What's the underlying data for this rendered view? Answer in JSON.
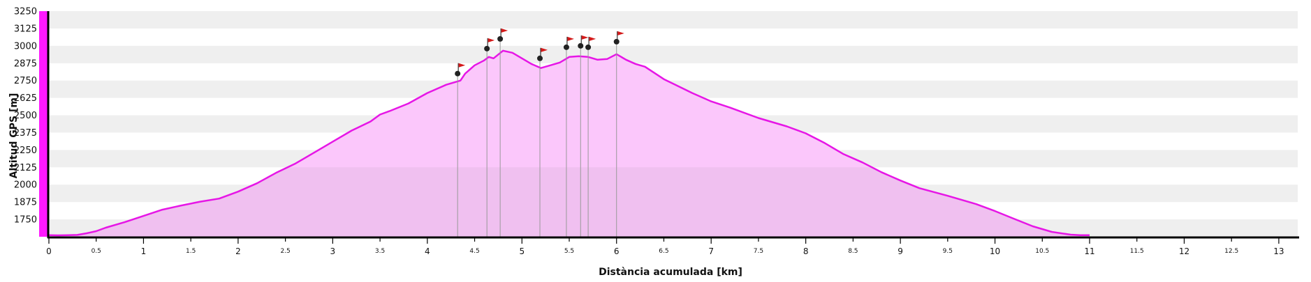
{
  "chart_data": {
    "type": "area",
    "xlabel": "Distància acumulada [km]",
    "ylabel": "Altitud GPS [m]",
    "xlim": [
      0,
      13.2
    ],
    "ylim": [
      1625,
      3250
    ],
    "x_ticks": [
      0,
      0.5,
      1,
      1.5,
      2,
      2.5,
      3,
      3.5,
      4,
      4.5,
      5,
      5.5,
      6,
      6.5,
      7,
      7.5,
      8,
      8.5,
      9,
      9.5,
      10,
      10.5,
      11,
      11.5,
      12,
      12.5,
      13
    ],
    "x_tick_labels": [
      "0",
      "0.5",
      "1",
      "1.5",
      "2",
      "2.5",
      "3",
      "3.5",
      "4",
      "4.5",
      "5",
      "5.5",
      "6",
      "6.5",
      "7",
      "7.5",
      "8",
      "8.5",
      "9",
      "9.5",
      "10",
      "10.5",
      "11",
      "11.5",
      "12",
      "12.5",
      "13"
    ],
    "y_ticks": [
      1750,
      1875,
      2000,
      2125,
      2250,
      2375,
      2500,
      2625,
      2750,
      2875,
      3000,
      3125,
      3250
    ],
    "y_tick_labels": [
      "1750",
      "1875",
      "2000",
      "2125",
      "2250",
      "2375",
      "2500",
      "2625",
      "2750",
      "2875",
      "3000",
      "3125",
      "3250"
    ],
    "grid": "alternating horizontal bands",
    "series": [
      {
        "x": [
          0,
          0.1,
          0.2,
          0.3,
          0.4,
          0.5,
          0.6,
          0.8,
          1.0,
          1.2,
          1.4,
          1.6,
          1.8,
          2.0,
          2.2,
          2.4,
          2.6,
          2.8,
          3.0,
          3.2,
          3.4,
          3.5,
          3.6,
          3.8,
          4.0,
          4.2,
          4.3,
          4.35,
          4.4,
          4.5,
          4.6,
          4.65,
          4.7,
          4.8,
          4.9,
          5.0,
          5.1,
          5.2,
          5.3,
          5.4,
          5.5,
          5.6,
          5.7,
          5.8,
          5.9,
          6.0,
          6.1,
          6.2,
          6.3,
          6.5,
          6.8,
          7.0,
          7.2,
          7.5,
          7.8,
          8.0,
          8.2,
          8.4,
          8.6,
          8.8,
          9.0,
          9.2,
          9.5,
          9.8,
          10.0,
          10.2,
          10.4,
          10.6,
          10.8,
          10.9,
          11.0
        ],
        "y": [
          1636,
          1635,
          1636,
          1638,
          1650,
          1665,
          1690,
          1730,
          1775,
          1820,
          1850,
          1878,
          1900,
          1950,
          2010,
          2085,
          2150,
          2230,
          2310,
          2390,
          2455,
          2505,
          2530,
          2585,
          2660,
          2720,
          2740,
          2750,
          2800,
          2860,
          2895,
          2920,
          2910,
          2965,
          2950,
          2910,
          2870,
          2840,
          2860,
          2880,
          2920,
          2925,
          2920,
          2900,
          2905,
          2940,
          2900,
          2870,
          2850,
          2760,
          2660,
          2600,
          2555,
          2480,
          2420,
          2370,
          2300,
          2220,
          2160,
          2090,
          2030,
          1975,
          1920,
          1860,
          1810,
          1755,
          1700,
          1660,
          1640,
          1636,
          1636
        ]
      }
    ],
    "markers": [
      {
        "x": 4.32,
        "y": 2800
      },
      {
        "x": 4.63,
        "y": 2980
      },
      {
        "x": 4.77,
        "y": 3050
      },
      {
        "x": 5.19,
        "y": 2910
      },
      {
        "x": 5.47,
        "y": 2990
      },
      {
        "x": 5.62,
        "y": 3000
      },
      {
        "x": 5.7,
        "y": 2990
      },
      {
        "x": 6.0,
        "y": 3030
      }
    ],
    "colors": {
      "line": "#e616e6",
      "fill": "#fbc7fb",
      "fill_lower": "#f0c0f0",
      "band_gray": "#efefef",
      "left_bar": "#ff19ff",
      "axis": "#000000",
      "flag": "#d41a1a",
      "marker": "#222222",
      "marker_line": "#999999"
    }
  }
}
